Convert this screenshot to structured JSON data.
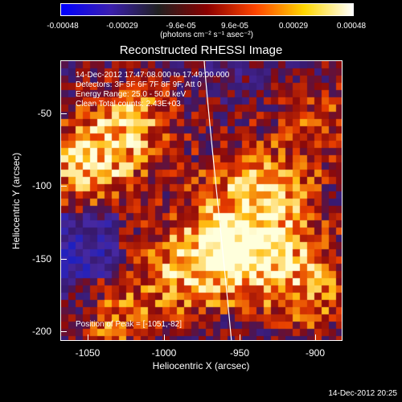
{
  "colorbar": {
    "ticks": [
      "-0.00048",
      "-0.00029",
      "-9.6e-05",
      "9.6e-05",
      "0.00029",
      "0.00048"
    ],
    "unit": "(photons cm⁻² s⁻¹ asec⁻²)",
    "colors": [
      "#0000ff",
      "#3b1fb0",
      "#202020",
      "#8b0000",
      "#ff4500",
      "#ffd700",
      "#ffffff"
    ]
  },
  "title": "Reconstructed RHESSI Image",
  "info": {
    "time_range": "14-Dec-2012 17:47:08.000 to 17:49:00.000",
    "detectors": "Detectors: 3F 5F 6F 7F 8F 9F, Att 0",
    "energy": "Energy Range: 25.0 - 50.0 keV",
    "clean": "Clean     Total counts: 2.43E+03"
  },
  "peak": "Position of Peak = [-1051,-82]",
  "axes": {
    "xlabel": "Heliocentric X (arcsec)",
    "ylabel": "Heliocentric Y (arcsec)",
    "xticks": [
      "-1050",
      "-1000",
      "-950",
      "-900"
    ],
    "yticks": [
      "-50",
      "-100",
      "-150",
      "-200"
    ]
  },
  "timestamp": "14-Dec-2012 20:25"
}
